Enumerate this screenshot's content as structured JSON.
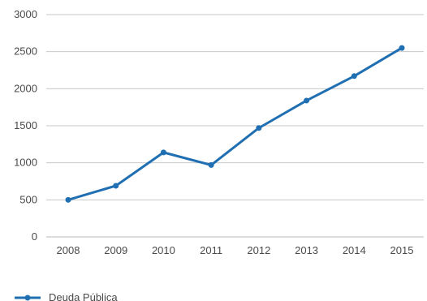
{
  "chart_data": {
    "type": "line",
    "categories": [
      "2008",
      "2009",
      "2010",
      "2011",
      "2012",
      "2013",
      "2014",
      "2015"
    ],
    "series": [
      {
        "name": "Deuda Pública",
        "values": [
          500,
          690,
          1140,
          970,
          1470,
          1840,
          2170,
          2550
        ],
        "color": "#1f6fb2"
      }
    ],
    "ylim": [
      0,
      3000
    ],
    "yticks": [
      "0",
      "500",
      "1000",
      "1500",
      "2000",
      "2500",
      "3000"
    ],
    "title": "",
    "xlabel": "",
    "ylabel": "",
    "grid": "horizontal",
    "legend_position": "bottom-left"
  },
  "legend": {
    "label": "Deuda Pública"
  },
  "colors": {
    "line": "#1f6fb2",
    "grid": "#c8c8c8",
    "axis_text": "#4a4a4a"
  }
}
